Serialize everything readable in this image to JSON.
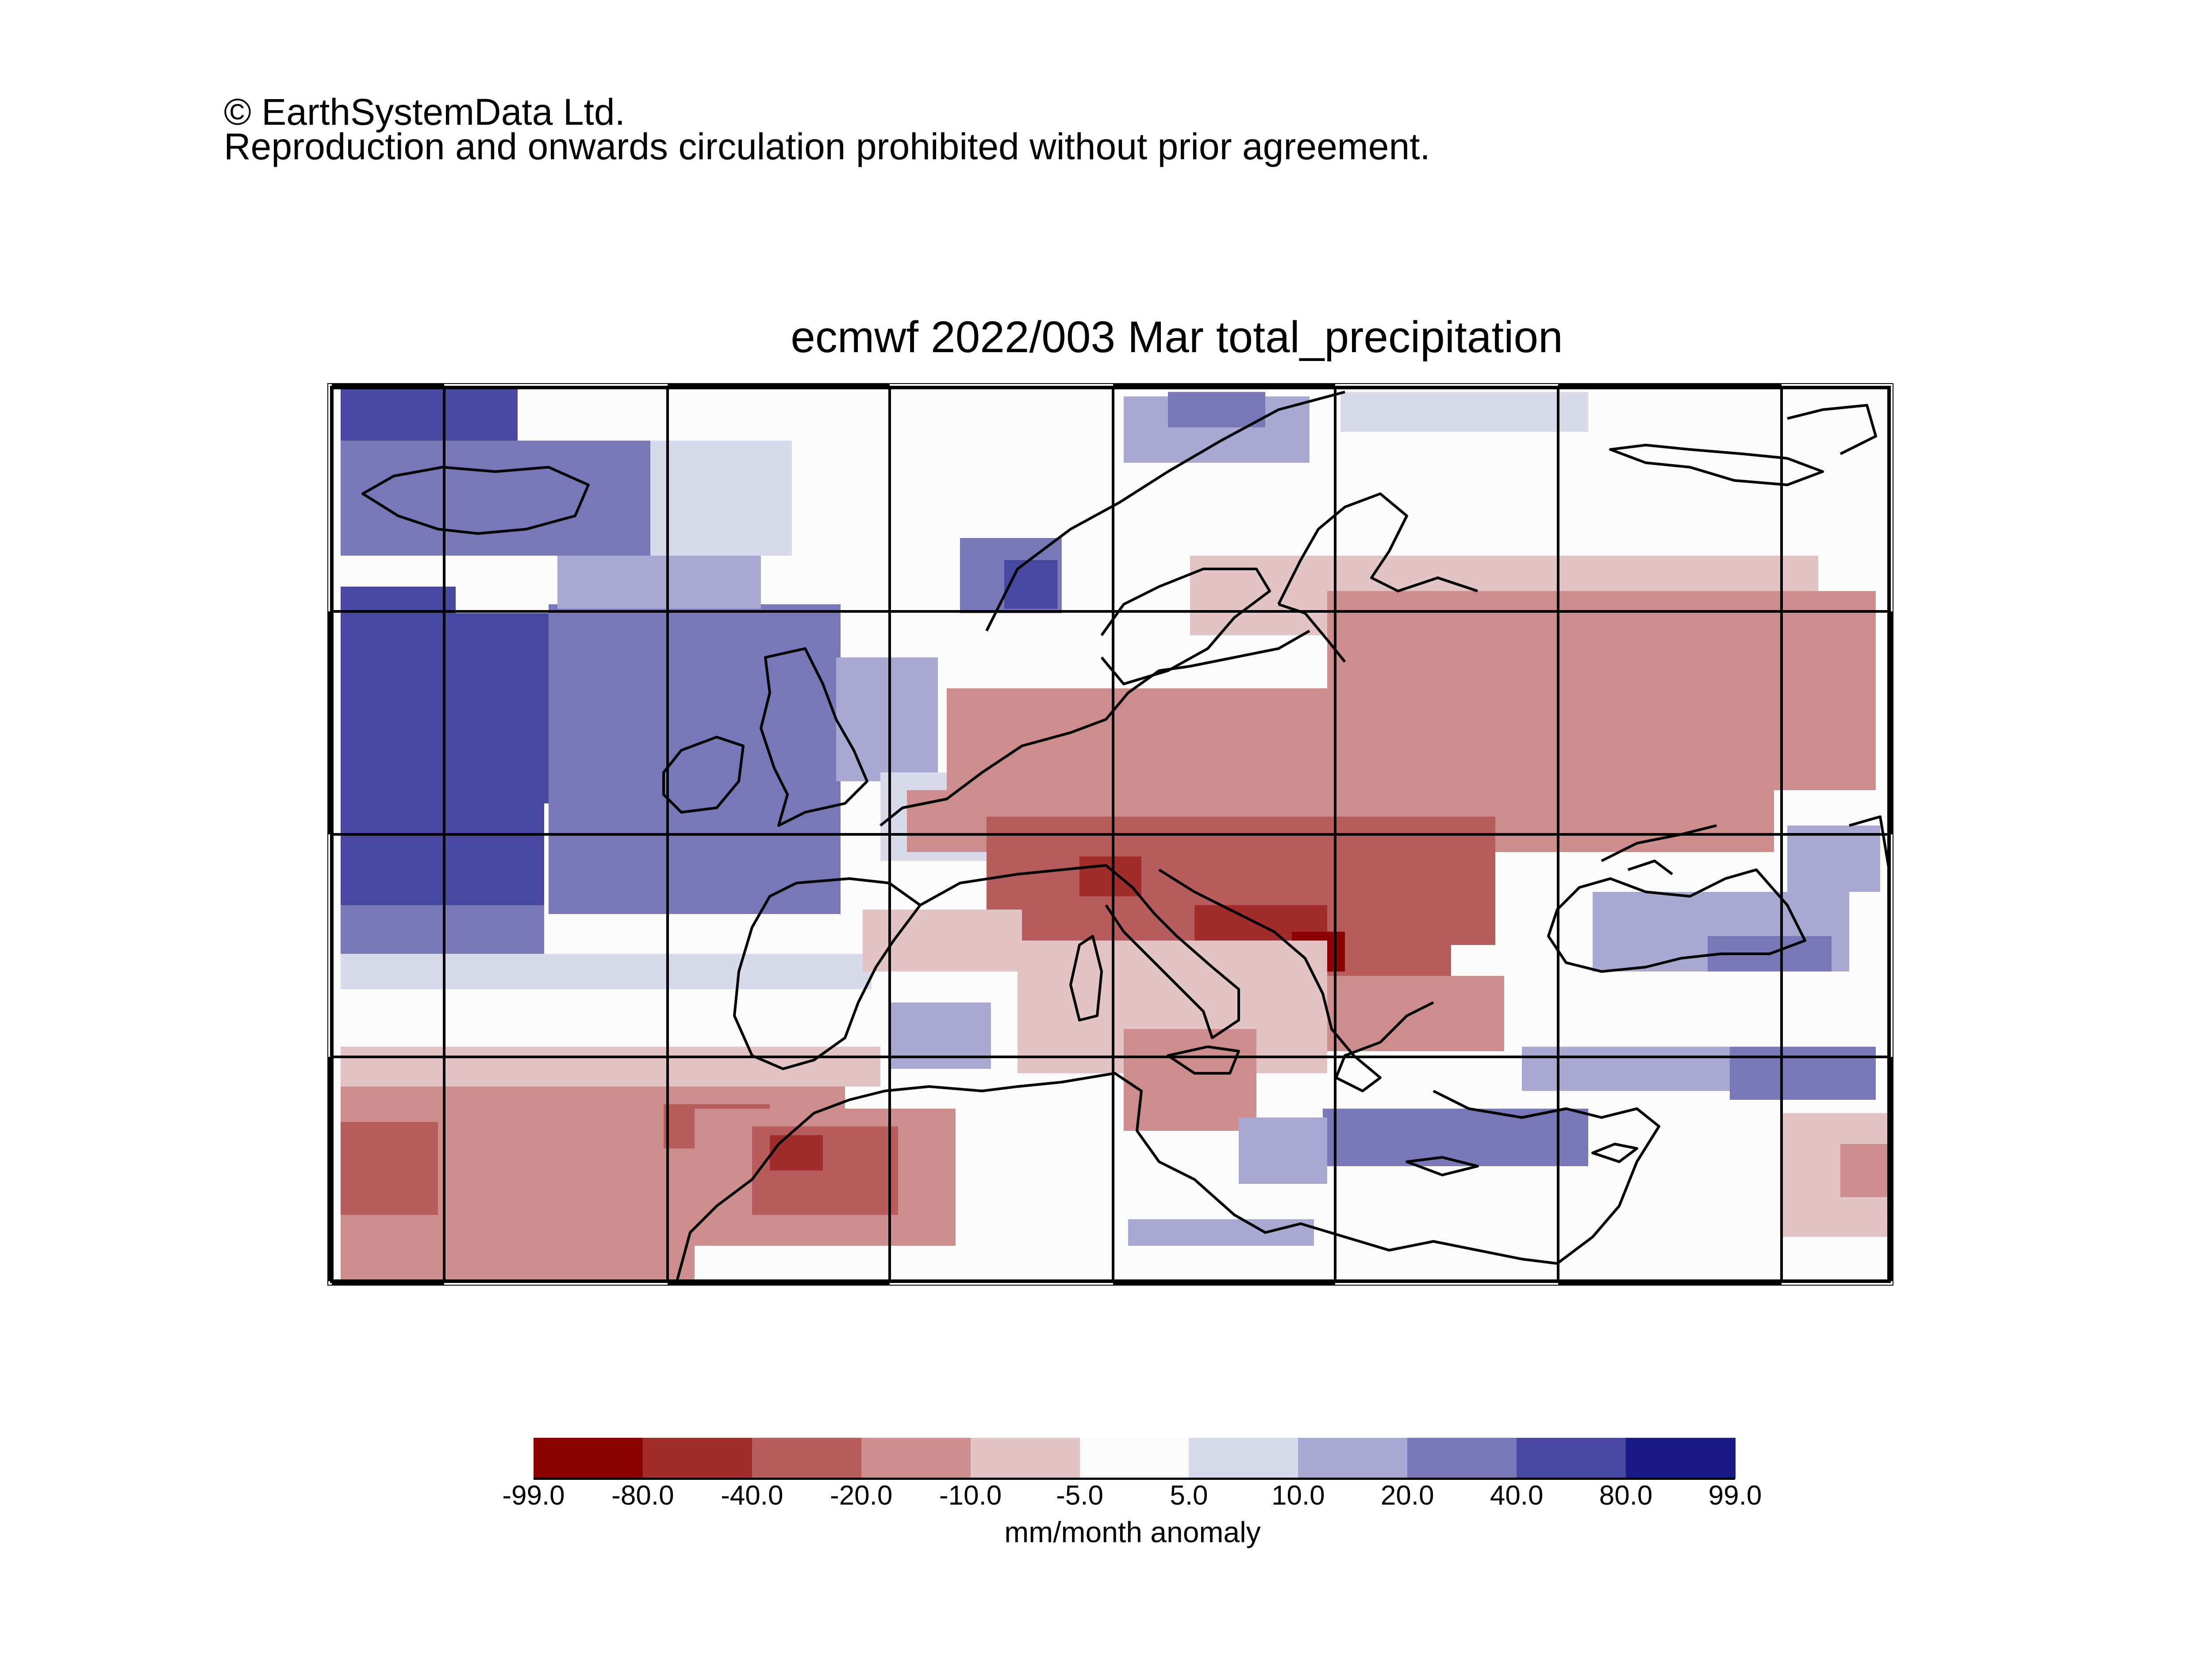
{
  "copyright": {
    "line1": "© EarthSystemData Ltd.",
    "line2": "Reproduction and onwards circulation prohibited without prior agreement."
  },
  "map": {
    "title": "ecmwf 2022/003 Mar total_precipitation",
    "projection": "cylindrical",
    "gridlines": true,
    "coastlines": true
  },
  "colorbar": {
    "unit_label": "mm/month anomaly",
    "tick_labels": [
      "-99.0",
      "-80.0",
      "-40.0",
      "-20.0",
      "-10.0",
      "-5.0",
      "5.0",
      "10.0",
      "20.0",
      "40.0",
      "80.0",
      "99.0"
    ],
    "colors": [
      "#8b0000",
      "#a02c2c",
      "#b65c5c",
      "#cd8d8d",
      "#e3c4c4",
      "#fbfbfb",
      "#d9d9ec",
      "#a8a8d2",
      "#7878b9",
      "#4848a0",
      "#1a1a88"
    ]
  }
}
